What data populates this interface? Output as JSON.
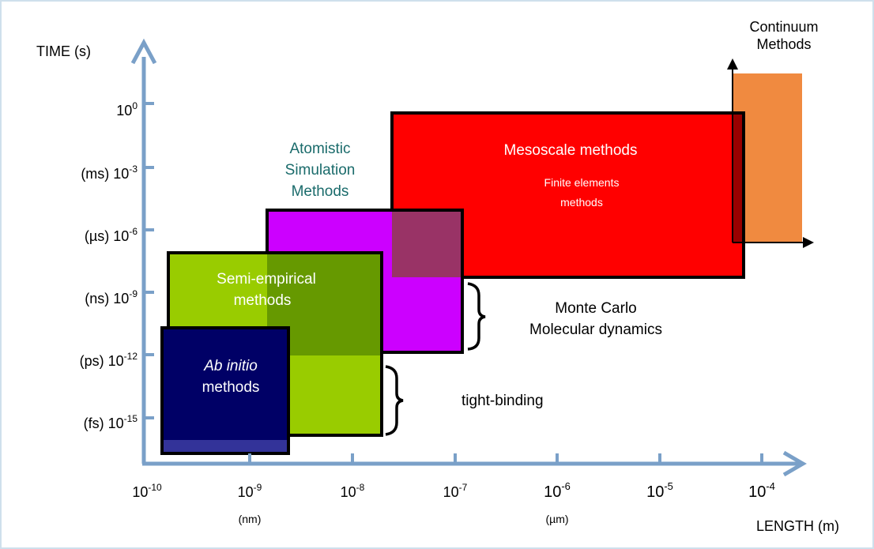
{
  "axes": {
    "y_title": "TIME (s)",
    "x_title": "LENGTH (m)",
    "y_ticks": [
      {
        "prefix": "",
        "base": "10",
        "exp": "0"
      },
      {
        "prefix": "(ms) ",
        "base": "10",
        "exp": "-3"
      },
      {
        "prefix": "(µs) ",
        "base": "10",
        "exp": "-6"
      },
      {
        "prefix": "(ns) ",
        "base": "10",
        "exp": "-9"
      },
      {
        "prefix": "(ps) ",
        "base": "10",
        "exp": "-12"
      },
      {
        "prefix": "(fs) ",
        "base": "10",
        "exp": "-15"
      }
    ],
    "x_ticks": [
      {
        "base": "10",
        "exp": "-10",
        "unit": ""
      },
      {
        "base": "10",
        "exp": "-9",
        "unit": "(nm)"
      },
      {
        "base": "10",
        "exp": "-8",
        "unit": ""
      },
      {
        "base": "10",
        "exp": "-7",
        "unit": ""
      },
      {
        "base": "10",
        "exp": "-6",
        "unit": "(µm)"
      },
      {
        "base": "10",
        "exp": "-5",
        "unit": ""
      },
      {
        "base": "10",
        "exp": "-4",
        "unit": ""
      }
    ]
  },
  "regions": {
    "continuum": {
      "line1": "Continuum",
      "line2": "Methods",
      "color": "#f08a40"
    },
    "mesoscale": {
      "title": "Mesoscale methods",
      "sub1": "Finite elements",
      "sub2": "methods",
      "color": "#ff0000"
    },
    "atomistic": {
      "line1": "Atomistic",
      "line2": "Simulation",
      "line3": "Methods",
      "color": "#cc00ff",
      "text_color": "#1a6b6b"
    },
    "semi_empirical": {
      "line1": "Semi-empirical",
      "line2": "methods",
      "color": "#99cc00"
    },
    "ab_initio": {
      "line1": "Ab initio",
      "line2": "methods",
      "color": "#000066"
    }
  },
  "annotations": {
    "md_line1": "Monte Carlo",
    "md_line2": "Molecular dynamics",
    "tb": "tight-binding"
  },
  "colors": {
    "axis": "#7aa0c8",
    "overlap_green": "#669900",
    "overlap_mauve": "#993366",
    "overlap_dark_red": "#990000"
  }
}
